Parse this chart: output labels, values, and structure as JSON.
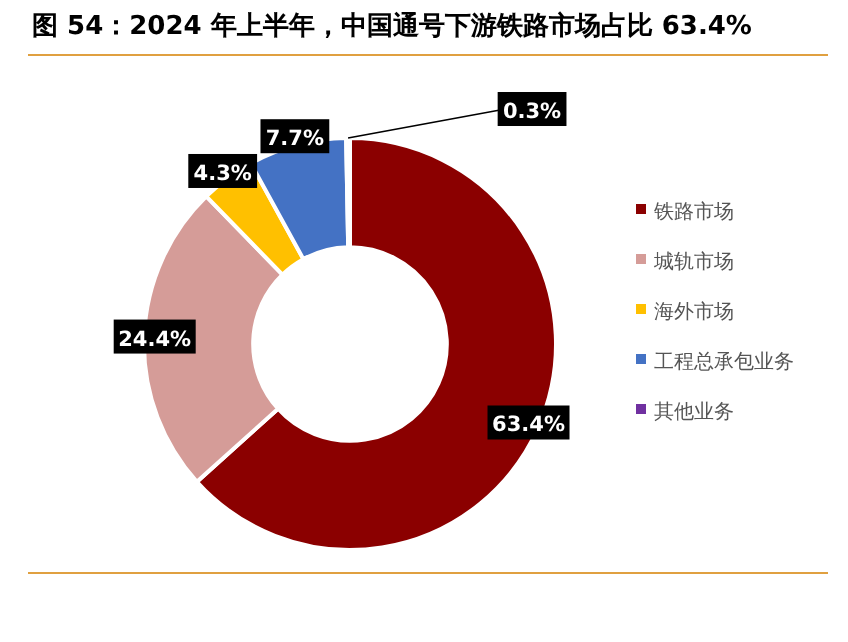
{
  "chart_data": {
    "type": "donut",
    "title": "图 54：2024 年上半年，中国通号下游铁路市场占比 63.4%",
    "categories": [
      "铁路市场",
      "城轨市场",
      "海外市场",
      "工程总承包业务",
      "其他业务"
    ],
    "values": [
      63.4,
      24.4,
      4.3,
      7.7,
      0.3
    ],
    "colors": [
      "#8b0000",
      "#d59c98",
      "#ffc000",
      "#4472c4",
      "#7030a0"
    ],
    "value_labels": [
      "63.4%",
      "24.4%",
      "4.3%",
      "7.7%",
      "0.3%"
    ],
    "legend": "right"
  }
}
